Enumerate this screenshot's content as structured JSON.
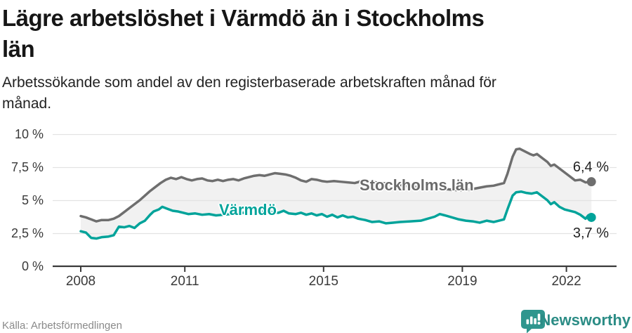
{
  "header": {
    "title_lines": [
      "Lägre arbetslöshet i Värmdö än i Stockholms",
      "län"
    ],
    "subtitle_lines": [
      "Arbetssökande som andel av den registerbaserade arbetskraften månad för",
      "månad."
    ]
  },
  "chart_data": {
    "type": "line",
    "title": "Lägre arbetslöshet i Värmdö än i Stockholms län",
    "subtitle": "Arbetssökande som andel av den registerbaserade arbetskraften månad för månad.",
    "grid": true,
    "legend_position": "inline-labels",
    "between_fill": "#f1f1f1",
    "x_axis": {
      "ticks": [
        2008,
        2011,
        2015,
        2019,
        2022
      ],
      "tick_labels": [
        "2008",
        "2011",
        "2015",
        "2019",
        "2022"
      ],
      "range": [
        2007.2,
        2023.5
      ]
    },
    "y_axis": {
      "ticks": [
        0,
        2.5,
        5,
        7.5,
        10
      ],
      "tick_labels": [
        "0 %",
        "2,5 %",
        "5 %",
        "7,5 %",
        "10 %"
      ],
      "range": [
        0,
        10
      ],
      "unit": "%"
    },
    "series": [
      {
        "name": "Stockholms län",
        "color": "#6e6e6e",
        "end_label": "6,4 %",
        "end_value": 6.4,
        "points": [
          [
            2008.0,
            3.8
          ],
          [
            2008.15,
            3.7
          ],
          [
            2008.3,
            3.55
          ],
          [
            2008.45,
            3.4
          ],
          [
            2008.6,
            3.5
          ],
          [
            2008.8,
            3.5
          ],
          [
            2008.95,
            3.6
          ],
          [
            2009.1,
            3.8
          ],
          [
            2009.25,
            4.1
          ],
          [
            2009.4,
            4.4
          ],
          [
            2009.55,
            4.7
          ],
          [
            2009.7,
            5.0
          ],
          [
            2009.85,
            5.35
          ],
          [
            2010.0,
            5.7
          ],
          [
            2010.15,
            6.0
          ],
          [
            2010.3,
            6.3
          ],
          [
            2010.45,
            6.55
          ],
          [
            2010.6,
            6.7
          ],
          [
            2010.75,
            6.6
          ],
          [
            2010.9,
            6.75
          ],
          [
            2011.05,
            6.6
          ],
          [
            2011.2,
            6.5
          ],
          [
            2011.35,
            6.6
          ],
          [
            2011.5,
            6.65
          ],
          [
            2011.65,
            6.5
          ],
          [
            2011.8,
            6.45
          ],
          [
            2011.95,
            6.55
          ],
          [
            2012.1,
            6.45
          ],
          [
            2012.25,
            6.55
          ],
          [
            2012.4,
            6.6
          ],
          [
            2012.55,
            6.5
          ],
          [
            2012.7,
            6.65
          ],
          [
            2012.85,
            6.75
          ],
          [
            2013.0,
            6.85
          ],
          [
            2013.15,
            6.9
          ],
          [
            2013.3,
            6.85
          ],
          [
            2013.45,
            6.95
          ],
          [
            2013.6,
            7.05
          ],
          [
            2013.75,
            7.0
          ],
          [
            2013.9,
            6.95
          ],
          [
            2014.05,
            6.85
          ],
          [
            2014.2,
            6.7
          ],
          [
            2014.35,
            6.5
          ],
          [
            2014.5,
            6.4
          ],
          [
            2014.65,
            6.6
          ],
          [
            2014.8,
            6.55
          ],
          [
            2014.95,
            6.45
          ],
          [
            2015.1,
            6.4
          ],
          [
            2015.3,
            6.45
          ],
          [
            2015.5,
            6.4
          ],
          [
            2015.7,
            6.35
          ],
          [
            2015.9,
            6.3
          ],
          [
            2016.1,
            6.45
          ],
          [
            2016.3,
            6.4
          ],
          [
            2016.5,
            6.35
          ],
          [
            2016.7,
            6.3
          ],
          [
            2016.9,
            6.25
          ],
          [
            2017.1,
            6.2
          ],
          [
            2017.3,
            6.1
          ],
          [
            2017.5,
            6.05
          ],
          [
            2017.7,
            6.0
          ],
          [
            2017.9,
            5.95
          ],
          [
            2018.1,
            5.95
          ],
          [
            2018.3,
            5.9
          ],
          [
            2018.5,
            5.85
          ],
          [
            2018.7,
            5.8
          ],
          [
            2018.9,
            5.75
          ],
          [
            2019.1,
            5.8
          ],
          [
            2019.3,
            5.85
          ],
          [
            2019.5,
            5.95
          ],
          [
            2019.7,
            6.05
          ],
          [
            2019.9,
            6.1
          ],
          [
            2020.05,
            6.2
          ],
          [
            2020.2,
            6.3
          ],
          [
            2020.3,
            7.0
          ],
          [
            2020.45,
            8.3
          ],
          [
            2020.55,
            8.85
          ],
          [
            2020.65,
            8.9
          ],
          [
            2020.8,
            8.7
          ],
          [
            2020.95,
            8.5
          ],
          [
            2021.05,
            8.4
          ],
          [
            2021.15,
            8.5
          ],
          [
            2021.3,
            8.2
          ],
          [
            2021.45,
            7.9
          ],
          [
            2021.55,
            7.6
          ],
          [
            2021.65,
            7.7
          ],
          [
            2021.8,
            7.4
          ],
          [
            2021.95,
            7.1
          ],
          [
            2022.1,
            6.8
          ],
          [
            2022.25,
            6.5
          ],
          [
            2022.4,
            6.55
          ],
          [
            2022.55,
            6.35
          ],
          [
            2022.72,
            6.4
          ]
        ]
      },
      {
        "name": "Värmdö",
        "color": "#00a39a",
        "end_label": "3,7 %",
        "end_value": 3.7,
        "points": [
          [
            2008.0,
            2.65
          ],
          [
            2008.15,
            2.55
          ],
          [
            2008.3,
            2.15
          ],
          [
            2008.45,
            2.1
          ],
          [
            2008.6,
            2.2
          ],
          [
            2008.8,
            2.25
          ],
          [
            2008.95,
            2.35
          ],
          [
            2009.1,
            3.0
          ],
          [
            2009.25,
            2.95
          ],
          [
            2009.4,
            3.05
          ],
          [
            2009.55,
            2.9
          ],
          [
            2009.7,
            3.25
          ],
          [
            2009.85,
            3.45
          ],
          [
            2010.0,
            3.9
          ],
          [
            2010.1,
            4.15
          ],
          [
            2010.25,
            4.3
          ],
          [
            2010.35,
            4.5
          ],
          [
            2010.5,
            4.35
          ],
          [
            2010.65,
            4.2
          ],
          [
            2010.8,
            4.15
          ],
          [
            2010.95,
            4.05
          ],
          [
            2011.1,
            3.95
          ],
          [
            2011.3,
            4.0
          ],
          [
            2011.5,
            3.9
          ],
          [
            2011.7,
            3.95
          ],
          [
            2011.9,
            3.85
          ],
          [
            2012.1,
            3.9
          ],
          [
            2012.3,
            3.95
          ],
          [
            2012.5,
            4.0
          ],
          [
            2012.7,
            4.05
          ],
          [
            2012.9,
            4.0
          ],
          [
            2013.1,
            4.1
          ],
          [
            2013.3,
            4.15
          ],
          [
            2013.5,
            4.1
          ],
          [
            2013.7,
            4.05
          ],
          [
            2013.85,
            4.2
          ],
          [
            2014.0,
            4.0
          ],
          [
            2014.2,
            3.95
          ],
          [
            2014.35,
            4.05
          ],
          [
            2014.5,
            3.9
          ],
          [
            2014.65,
            4.0
          ],
          [
            2014.8,
            3.85
          ],
          [
            2014.95,
            3.95
          ],
          [
            2015.1,
            3.75
          ],
          [
            2015.25,
            3.9
          ],
          [
            2015.4,
            3.7
          ],
          [
            2015.55,
            3.85
          ],
          [
            2015.7,
            3.7
          ],
          [
            2015.85,
            3.75
          ],
          [
            2016.0,
            3.6
          ],
          [
            2016.2,
            3.5
          ],
          [
            2016.4,
            3.35
          ],
          [
            2016.6,
            3.4
          ],
          [
            2016.8,
            3.25
          ],
          [
            2017.0,
            3.3
          ],
          [
            2017.2,
            3.35
          ],
          [
            2017.5,
            3.4
          ],
          [
            2017.8,
            3.45
          ],
          [
            2018.0,
            3.6
          ],
          [
            2018.2,
            3.75
          ],
          [
            2018.35,
            3.95
          ],
          [
            2018.5,
            3.85
          ],
          [
            2018.7,
            3.7
          ],
          [
            2018.9,
            3.55
          ],
          [
            2019.1,
            3.45
          ],
          [
            2019.3,
            3.4
          ],
          [
            2019.5,
            3.3
          ],
          [
            2019.7,
            3.45
          ],
          [
            2019.9,
            3.35
          ],
          [
            2020.05,
            3.45
          ],
          [
            2020.2,
            3.55
          ],
          [
            2020.3,
            4.3
          ],
          [
            2020.45,
            5.35
          ],
          [
            2020.55,
            5.6
          ],
          [
            2020.7,
            5.65
          ],
          [
            2020.85,
            5.55
          ],
          [
            2021.0,
            5.5
          ],
          [
            2021.15,
            5.6
          ],
          [
            2021.3,
            5.3
          ],
          [
            2021.45,
            5.0
          ],
          [
            2021.55,
            4.7
          ],
          [
            2021.65,
            4.85
          ],
          [
            2021.8,
            4.5
          ],
          [
            2021.95,
            4.3
          ],
          [
            2022.1,
            4.2
          ],
          [
            2022.25,
            4.1
          ],
          [
            2022.4,
            3.9
          ],
          [
            2022.55,
            3.6
          ],
          [
            2022.63,
            3.85
          ],
          [
            2022.72,
            3.7
          ]
        ]
      }
    ]
  },
  "footer": {
    "source": "Källa: Arbetsförmedlingen",
    "brand": "Newsworthy"
  },
  "colors": {
    "stockholm_line": "#6e6e6e",
    "varmdo_line": "#00a39a",
    "between_fill": "#f1f1f1",
    "gridline": "#e2e2e2",
    "axis": "#3a3a3a",
    "brand_teal": "#2b8c85"
  }
}
